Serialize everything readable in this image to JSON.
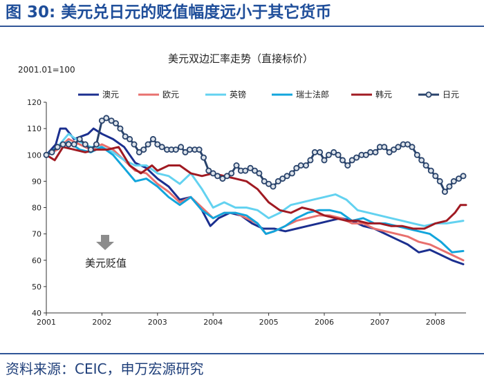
{
  "header": {
    "title": "图 30: 美元兑日元的贬值幅度远小于其它货币"
  },
  "footer": {
    "source": "资料来源：CEIC，申万宏源研究"
  },
  "chart_data": {
    "type": "line",
    "title": "美元双边汇率走势（直接标价）",
    "ylabel": "2001.01=100",
    "xlabel": "",
    "ylim": [
      40,
      120
    ],
    "xlim": [
      2001.0,
      2008.55
    ],
    "yticks": [
      40,
      50,
      60,
      70,
      80,
      90,
      100,
      110,
      120
    ],
    "xticks": [
      "2001",
      "2002",
      "2003",
      "2004",
      "2005",
      "2006",
      "2007",
      "2008"
    ],
    "grid": false,
    "legend_position": "top",
    "annotation": {
      "text": "美元贬值",
      "x": 2002.05,
      "y": 60
    },
    "series": [
      {
        "name": "澳元",
        "color": "#1b2f8f",
        "marker": "none",
        "points": [
          [
            2001.0,
            100
          ],
          [
            2001.17,
            104
          ],
          [
            2001.25,
            110
          ],
          [
            2001.35,
            110
          ],
          [
            2001.5,
            106
          ],
          [
            2001.75,
            108
          ],
          [
            2001.85,
            110
          ],
          [
            2002.0,
            108
          ],
          [
            2002.2,
            106
          ],
          [
            2002.4,
            103
          ],
          [
            2002.6,
            97
          ],
          [
            2002.8,
            95
          ],
          [
            2003.0,
            91
          ],
          [
            2003.2,
            88
          ],
          [
            2003.4,
            83
          ],
          [
            2003.6,
            84
          ],
          [
            2003.8,
            79
          ],
          [
            2003.95,
            73
          ],
          [
            2004.1,
            76
          ],
          [
            2004.3,
            78
          ],
          [
            2004.5,
            77
          ],
          [
            2004.7,
            74
          ],
          [
            2004.9,
            72
          ],
          [
            2005.1,
            72
          ],
          [
            2005.3,
            71
          ],
          [
            2005.5,
            72
          ],
          [
            2005.7,
            73
          ],
          [
            2005.9,
            74
          ],
          [
            2006.1,
            75
          ],
          [
            2006.3,
            76
          ],
          [
            2006.5,
            75
          ],
          [
            2006.7,
            73
          ],
          [
            2006.9,
            72
          ],
          [
            2007.1,
            70
          ],
          [
            2007.3,
            68
          ],
          [
            2007.5,
            66
          ],
          [
            2007.7,
            63
          ],
          [
            2007.9,
            64
          ],
          [
            2008.1,
            62
          ],
          [
            2008.3,
            60
          ],
          [
            2008.5,
            58.5
          ]
        ]
      },
      {
        "name": "欧元",
        "color": "#e8706e",
        "marker": "none",
        "points": [
          [
            2001.0,
            100
          ],
          [
            2001.2,
            102
          ],
          [
            2001.4,
            106
          ],
          [
            2001.6,
            104
          ],
          [
            2001.8,
            102
          ],
          [
            2002.0,
            104
          ],
          [
            2002.2,
            102
          ],
          [
            2002.4,
            98
          ],
          [
            2002.6,
            94
          ],
          [
            2002.8,
            93
          ],
          [
            2003.0,
            89
          ],
          [
            2003.2,
            86
          ],
          [
            2003.4,
            82
          ],
          [
            2003.6,
            84
          ],
          [
            2003.8,
            80
          ],
          [
            2004.0,
            76
          ],
          [
            2004.2,
            78
          ],
          [
            2004.4,
            78
          ],
          [
            2004.6,
            76
          ],
          [
            2004.8,
            74
          ],
          [
            2004.95,
            70
          ],
          [
            2005.1,
            71
          ],
          [
            2005.3,
            73
          ],
          [
            2005.5,
            75
          ],
          [
            2005.7,
            76
          ],
          [
            2005.9,
            77
          ],
          [
            2006.1,
            77
          ],
          [
            2006.3,
            76
          ],
          [
            2006.5,
            74
          ],
          [
            2006.7,
            74
          ],
          [
            2006.9,
            72
          ],
          [
            2007.1,
            71
          ],
          [
            2007.3,
            70
          ],
          [
            2007.5,
            69
          ],
          [
            2007.7,
            67
          ],
          [
            2007.9,
            66
          ],
          [
            2008.1,
            64
          ],
          [
            2008.3,
            62
          ],
          [
            2008.5,
            60
          ]
        ]
      },
      {
        "name": "英镑",
        "color": "#63d2f0",
        "marker": "none",
        "points": [
          [
            2001.0,
            100
          ],
          [
            2001.2,
            103
          ],
          [
            2001.4,
            108
          ],
          [
            2001.6,
            105
          ],
          [
            2001.8,
            103
          ],
          [
            2002.0,
            103
          ],
          [
            2002.2,
            101
          ],
          [
            2002.4,
            98
          ],
          [
            2002.6,
            96
          ],
          [
            2002.8,
            96
          ],
          [
            2003.0,
            93
          ],
          [
            2003.2,
            92
          ],
          [
            2003.4,
            89
          ],
          [
            2003.6,
            93
          ],
          [
            2003.8,
            87
          ],
          [
            2004.0,
            80
          ],
          [
            2004.2,
            82
          ],
          [
            2004.4,
            80
          ],
          [
            2004.6,
            80
          ],
          [
            2004.8,
            79
          ],
          [
            2005.0,
            76
          ],
          [
            2005.2,
            78
          ],
          [
            2005.4,
            81
          ],
          [
            2005.6,
            82
          ],
          [
            2005.8,
            83
          ],
          [
            2006.0,
            84
          ],
          [
            2006.2,
            85
          ],
          [
            2006.4,
            83
          ],
          [
            2006.6,
            79
          ],
          [
            2006.8,
            78
          ],
          [
            2007.0,
            77
          ],
          [
            2007.2,
            76
          ],
          [
            2007.4,
            75
          ],
          [
            2007.6,
            74
          ],
          [
            2007.8,
            73
          ],
          [
            2008.0,
            74
          ],
          [
            2008.2,
            74
          ],
          [
            2008.5,
            75
          ]
        ]
      },
      {
        "name": "瑞士法郎",
        "color": "#12a5dc",
        "marker": "none",
        "points": [
          [
            2001.0,
            100
          ],
          [
            2001.2,
            103
          ],
          [
            2001.4,
            105
          ],
          [
            2001.6,
            102
          ],
          [
            2001.8,
            101
          ],
          [
            2002.0,
            103
          ],
          [
            2002.2,
            100
          ],
          [
            2002.4,
            95
          ],
          [
            2002.6,
            90
          ],
          [
            2002.8,
            91
          ],
          [
            2003.0,
            88
          ],
          [
            2003.2,
            84
          ],
          [
            2003.4,
            81
          ],
          [
            2003.6,
            84
          ],
          [
            2003.8,
            79
          ],
          [
            2004.0,
            76
          ],
          [
            2004.2,
            78
          ],
          [
            2004.4,
            78
          ],
          [
            2004.6,
            77
          ],
          [
            2004.8,
            74
          ],
          [
            2004.95,
            70
          ],
          [
            2005.1,
            71
          ],
          [
            2005.3,
            73
          ],
          [
            2005.5,
            76
          ],
          [
            2005.7,
            78
          ],
          [
            2005.9,
            79
          ],
          [
            2006.1,
            79
          ],
          [
            2006.3,
            78
          ],
          [
            2006.5,
            75
          ],
          [
            2006.7,
            76
          ],
          [
            2006.9,
            74
          ],
          [
            2007.1,
            74
          ],
          [
            2007.3,
            73
          ],
          [
            2007.5,
            72
          ],
          [
            2007.7,
            71
          ],
          [
            2007.9,
            70
          ],
          [
            2008.1,
            67
          ],
          [
            2008.3,
            63
          ],
          [
            2008.5,
            63.5
          ]
        ]
      },
      {
        "name": "韩元",
        "color": "#a01a22",
        "marker": "none",
        "points": [
          [
            2001.0,
            100
          ],
          [
            2001.15,
            98
          ],
          [
            2001.3,
            103
          ],
          [
            2001.5,
            102
          ],
          [
            2001.7,
            101
          ],
          [
            2001.9,
            102
          ],
          [
            2002.1,
            102
          ],
          [
            2002.3,
            103
          ],
          [
            2002.5,
            96
          ],
          [
            2002.7,
            93
          ],
          [
            2002.9,
            96
          ],
          [
            2003.0,
            94
          ],
          [
            2003.2,
            96
          ],
          [
            2003.4,
            96
          ],
          [
            2003.6,
            93
          ],
          [
            2003.8,
            92
          ],
          [
            2004.0,
            93
          ],
          [
            2004.2,
            92
          ],
          [
            2004.4,
            91
          ],
          [
            2004.6,
            90
          ],
          [
            2004.8,
            87
          ],
          [
            2005.0,
            82
          ],
          [
            2005.2,
            79
          ],
          [
            2005.4,
            78
          ],
          [
            2005.6,
            80
          ],
          [
            2005.8,
            79
          ],
          [
            2006.0,
            77
          ],
          [
            2006.2,
            76
          ],
          [
            2006.4,
            75
          ],
          [
            2006.6,
            75
          ],
          [
            2006.8,
            74
          ],
          [
            2007.0,
            74
          ],
          [
            2007.2,
            73
          ],
          [
            2007.4,
            73
          ],
          [
            2007.6,
            72
          ],
          [
            2007.8,
            72
          ],
          [
            2008.0,
            74
          ],
          [
            2008.2,
            75
          ],
          [
            2008.35,
            78
          ],
          [
            2008.45,
            81
          ],
          [
            2008.55,
            81
          ]
        ]
      },
      {
        "name": "日元",
        "color": "#29436b",
        "marker": "circle",
        "points": [
          [
            2001.0,
            100
          ],
          [
            2001.1,
            101
          ],
          [
            2001.2,
            103
          ],
          [
            2001.3,
            104
          ],
          [
            2001.4,
            104
          ],
          [
            2001.5,
            104
          ],
          [
            2001.6,
            106
          ],
          [
            2001.7,
            104
          ],
          [
            2001.8,
            102
          ],
          [
            2001.9,
            104
          ],
          [
            2002.0,
            113
          ],
          [
            2002.08,
            114
          ],
          [
            2002.17,
            113
          ],
          [
            2002.25,
            112
          ],
          [
            2002.33,
            110
          ],
          [
            2002.42,
            107
          ],
          [
            2002.5,
            106
          ],
          [
            2002.58,
            104
          ],
          [
            2002.67,
            101
          ],
          [
            2002.75,
            102
          ],
          [
            2002.83,
            104
          ],
          [
            2002.92,
            106
          ],
          [
            2003.0,
            104
          ],
          [
            2003.08,
            103
          ],
          [
            2003.17,
            102
          ],
          [
            2003.25,
            102
          ],
          [
            2003.33,
            102
          ],
          [
            2003.42,
            103
          ],
          [
            2003.5,
            101
          ],
          [
            2003.58,
            102
          ],
          [
            2003.67,
            102
          ],
          [
            2003.75,
            102
          ],
          [
            2003.83,
            99
          ],
          [
            2003.92,
            94
          ],
          [
            2004.0,
            93
          ],
          [
            2004.08,
            92
          ],
          [
            2004.17,
            91
          ],
          [
            2004.25,
            92
          ],
          [
            2004.33,
            93
          ],
          [
            2004.42,
            96
          ],
          [
            2004.5,
            94
          ],
          [
            2004.58,
            94
          ],
          [
            2004.67,
            95
          ],
          [
            2004.75,
            94
          ],
          [
            2004.83,
            93
          ],
          [
            2004.92,
            90
          ],
          [
            2005.0,
            89
          ],
          [
            2005.08,
            88
          ],
          [
            2005.17,
            90
          ],
          [
            2005.25,
            91
          ],
          [
            2005.33,
            92
          ],
          [
            2005.42,
            93
          ],
          [
            2005.5,
            95
          ],
          [
            2005.58,
            96
          ],
          [
            2005.67,
            96
          ],
          [
            2005.75,
            98
          ],
          [
            2005.83,
            101
          ],
          [
            2005.92,
            101
          ],
          [
            2006.0,
            98
          ],
          [
            2006.08,
            100
          ],
          [
            2006.17,
            101
          ],
          [
            2006.25,
            100
          ],
          [
            2006.33,
            98
          ],
          [
            2006.42,
            96
          ],
          [
            2006.5,
            98
          ],
          [
            2006.58,
            99
          ],
          [
            2006.67,
            100
          ],
          [
            2006.75,
            100
          ],
          [
            2006.83,
            101
          ],
          [
            2006.92,
            101
          ],
          [
            2007.0,
            103
          ],
          [
            2007.08,
            103
          ],
          [
            2007.17,
            101
          ],
          [
            2007.25,
            102
          ],
          [
            2007.33,
            103
          ],
          [
            2007.42,
            104
          ],
          [
            2007.5,
            104
          ],
          [
            2007.58,
            103
          ],
          [
            2007.67,
            100
          ],
          [
            2007.75,
            98
          ],
          [
            2007.83,
            96
          ],
          [
            2007.92,
            94
          ],
          [
            2008.0,
            92
          ],
          [
            2008.08,
            90
          ],
          [
            2008.17,
            86
          ],
          [
            2008.25,
            88
          ],
          [
            2008.33,
            90
          ],
          [
            2008.42,
            91
          ],
          [
            2008.5,
            92
          ]
        ]
      }
    ]
  }
}
